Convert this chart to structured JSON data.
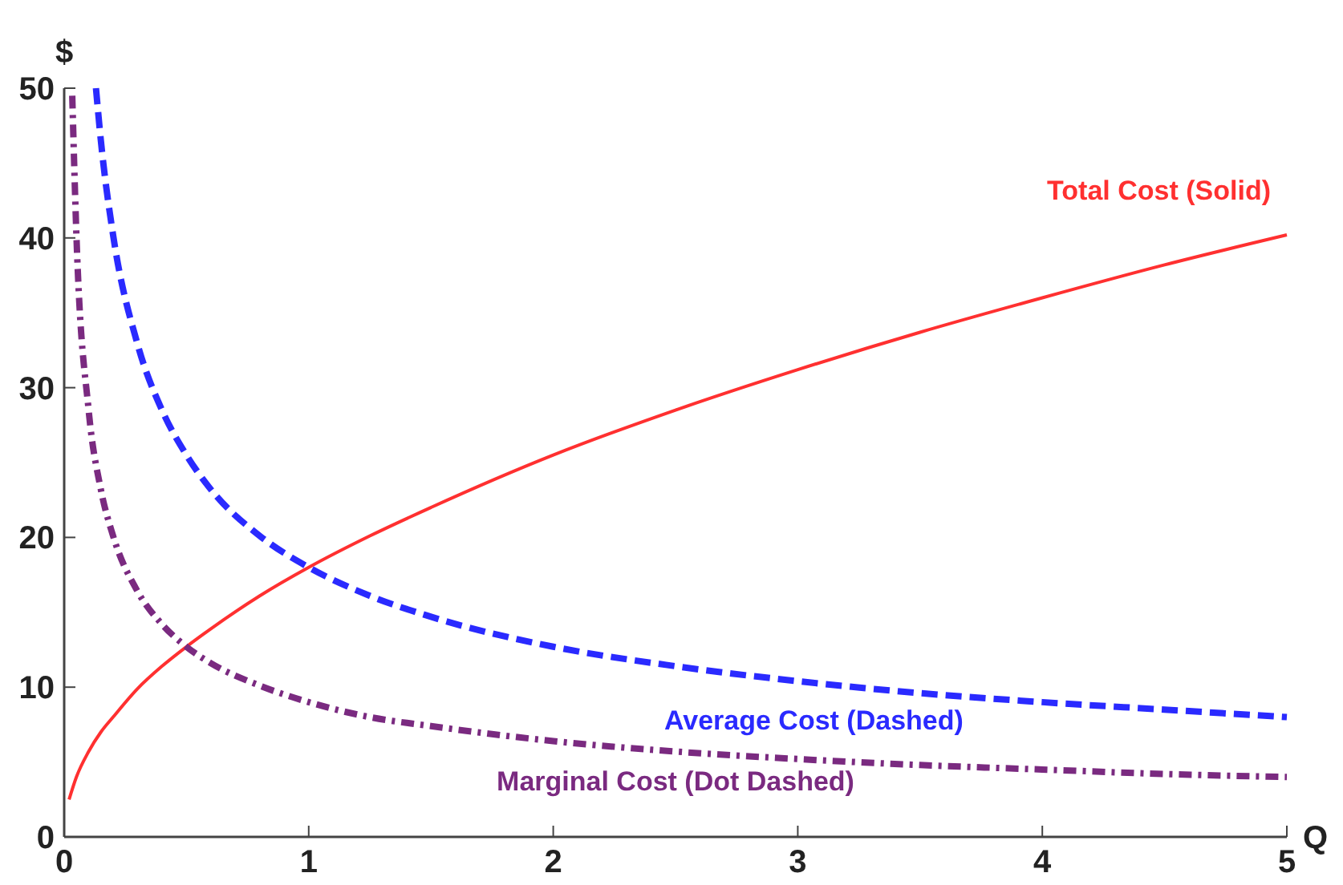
{
  "chart_data": {
    "type": "line",
    "xlabel": "Q",
    "ylabel": "$",
    "xlim": [
      0,
      5
    ],
    "ylim": [
      0,
      50
    ],
    "xticks": [
      0,
      1,
      2,
      3,
      4,
      5
    ],
    "yticks": [
      0,
      10,
      20,
      30,
      40,
      50
    ],
    "grid": false,
    "marker": "none",
    "series": [
      {
        "name": "Total Cost (Solid)",
        "color": "#ff3030",
        "line_style": "solid",
        "x": [
          0.02,
          0.05,
          0.1,
          0.15,
          0.2,
          0.3,
          0.4,
          0.5,
          0.6,
          0.8,
          1,
          1.25,
          1.5,
          2,
          2.5,
          3,
          3.5,
          4,
          4.5,
          5
        ],
        "values": [
          2.5,
          4.0,
          5.7,
          7.0,
          8.0,
          9.9,
          11.4,
          12.7,
          13.9,
          16.1,
          18,
          20.1,
          22.0,
          25.5,
          28.5,
          31.2,
          33.7,
          36,
          38.2,
          40.2
        ]
      },
      {
        "name": "Average Cost (Dashed)",
        "color": "#2a2aff",
        "line_style": "dashed",
        "x": [
          0.13,
          0.15,
          0.2,
          0.3,
          0.4,
          0.5,
          0.6,
          0.8,
          1,
          1.25,
          1.5,
          2,
          2.5,
          3,
          3.5,
          4,
          4.5,
          5
        ],
        "values": [
          50,
          46.5,
          40.2,
          32.9,
          28.5,
          25.5,
          23.2,
          20.1,
          18,
          16.1,
          14.7,
          12.7,
          11.4,
          10.4,
          9.6,
          9,
          8.5,
          8.0
        ]
      },
      {
        "name": "Marginal Cost (Dot Dashed)",
        "color": "#7a2a80",
        "line_style": "dotted",
        "x": [
          0.033,
          0.05,
          0.1,
          0.15,
          0.2,
          0.3,
          0.4,
          0.5,
          0.6,
          0.8,
          1,
          1.25,
          1.5,
          2,
          2.5,
          3,
          3.5,
          4,
          4.5,
          5
        ],
        "values": [
          49.5,
          40.2,
          28.5,
          23.2,
          20.1,
          16.4,
          14.2,
          12.7,
          11.6,
          10.1,
          9,
          8.0,
          7.4,
          6.4,
          5.7,
          5.2,
          4.8,
          4.5,
          4.2,
          4.0
        ]
      }
    ]
  }
}
